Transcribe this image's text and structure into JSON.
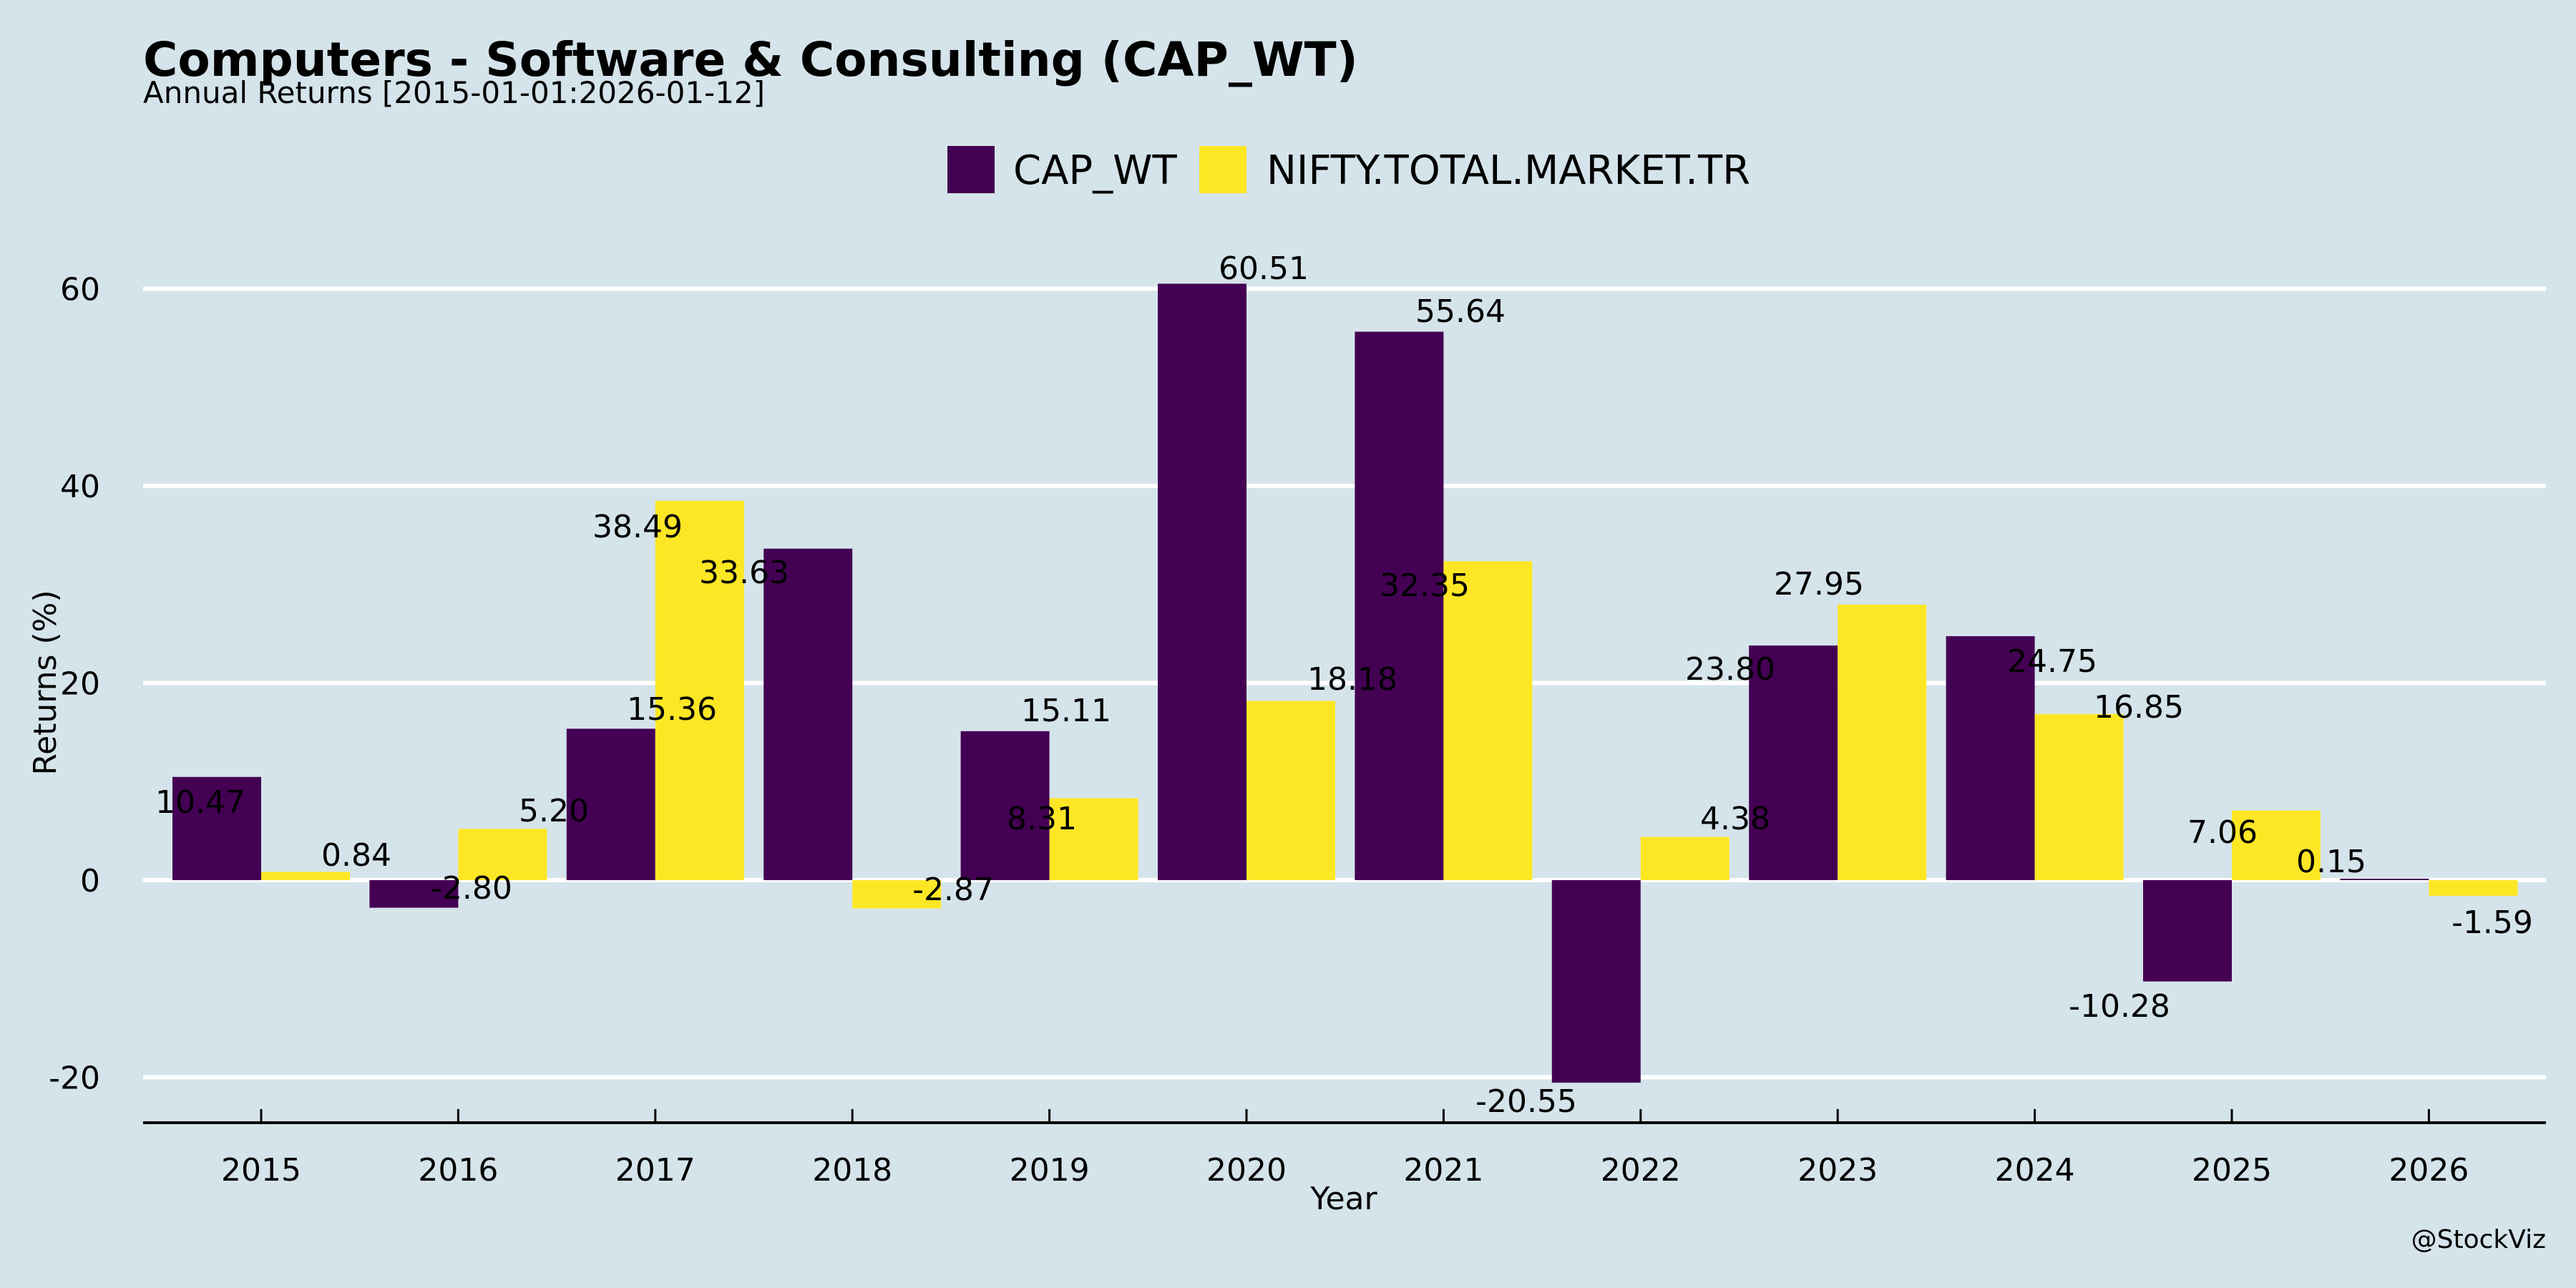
{
  "colors": {
    "background": "#D5E4EB",
    "grid": "#FFFFFF",
    "series": [
      "#440154",
      "#FDE725"
    ]
  },
  "chart_data": {
    "type": "bar",
    "title": "Computers - Software & Consulting (CAP_WT)",
    "subtitle": "Annual Returns [2015-01-01:2026-01-12]",
    "xlabel": "Year",
    "ylabel": "Returns (%)",
    "credit": "@StockViz",
    "categories": [
      "2015",
      "2016",
      "2017",
      "2018",
      "2019",
      "2020",
      "2021",
      "2022",
      "2023",
      "2024",
      "2025",
      "2026"
    ],
    "series": [
      {
        "name": "CAP_WT",
        "color": "#440154",
        "values": [
          10.47,
          -2.8,
          15.36,
          33.63,
          15.11,
          60.51,
          55.64,
          -20.55,
          23.8,
          24.75,
          -10.28,
          0.15
        ],
        "labels": [
          "10.47",
          "-2.80",
          "15.36",
          "33.63",
          "15.11",
          "60.51",
          "55.64",
          "-20.55",
          "23.80",
          "24.75",
          "-10.28",
          "0.15"
        ]
      },
      {
        "name": "NIFTY.TOTAL.MARKET.TR",
        "color": "#FDE725",
        "values": [
          0.84,
          5.2,
          38.49,
          -2.87,
          8.31,
          18.18,
          32.35,
          4.38,
          27.95,
          16.85,
          7.06,
          -1.59
        ],
        "labels": [
          "0.84",
          "5.20",
          "38.49",
          "-2.87",
          "8.31",
          "18.18",
          "32.35",
          "4.38",
          "27.95",
          "16.85",
          "7.06",
          "-1.59"
        ]
      }
    ],
    "yticks": [
      -20,
      0,
      20,
      40,
      60
    ],
    "ytick_labels": [
      "-20",
      "0",
      "20",
      "40",
      "60"
    ],
    "ylim": [
      -24.5,
      68
    ],
    "grid": "y",
    "legend": {
      "position": "top-center",
      "entries": [
        "CAP_WT",
        "NIFTY.TOTAL.MARKET.TR"
      ]
    }
  }
}
